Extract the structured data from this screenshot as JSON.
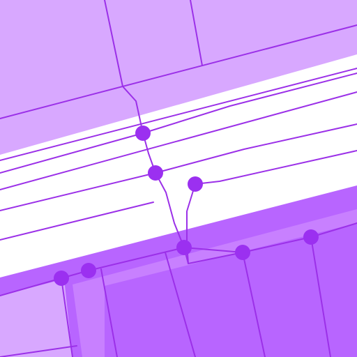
{
  "map": {
    "colors": {
      "background": "#ffffff",
      "parcel_light": "#d8a8ff",
      "parcel_dark": "#b865ff",
      "parcel_inner": "#c880ff",
      "line": "#9b30e8",
      "node": "#9b30f0"
    },
    "layers": [
      "parcels",
      "boundary-lines",
      "cable-routes",
      "junction-nodes"
    ]
  }
}
